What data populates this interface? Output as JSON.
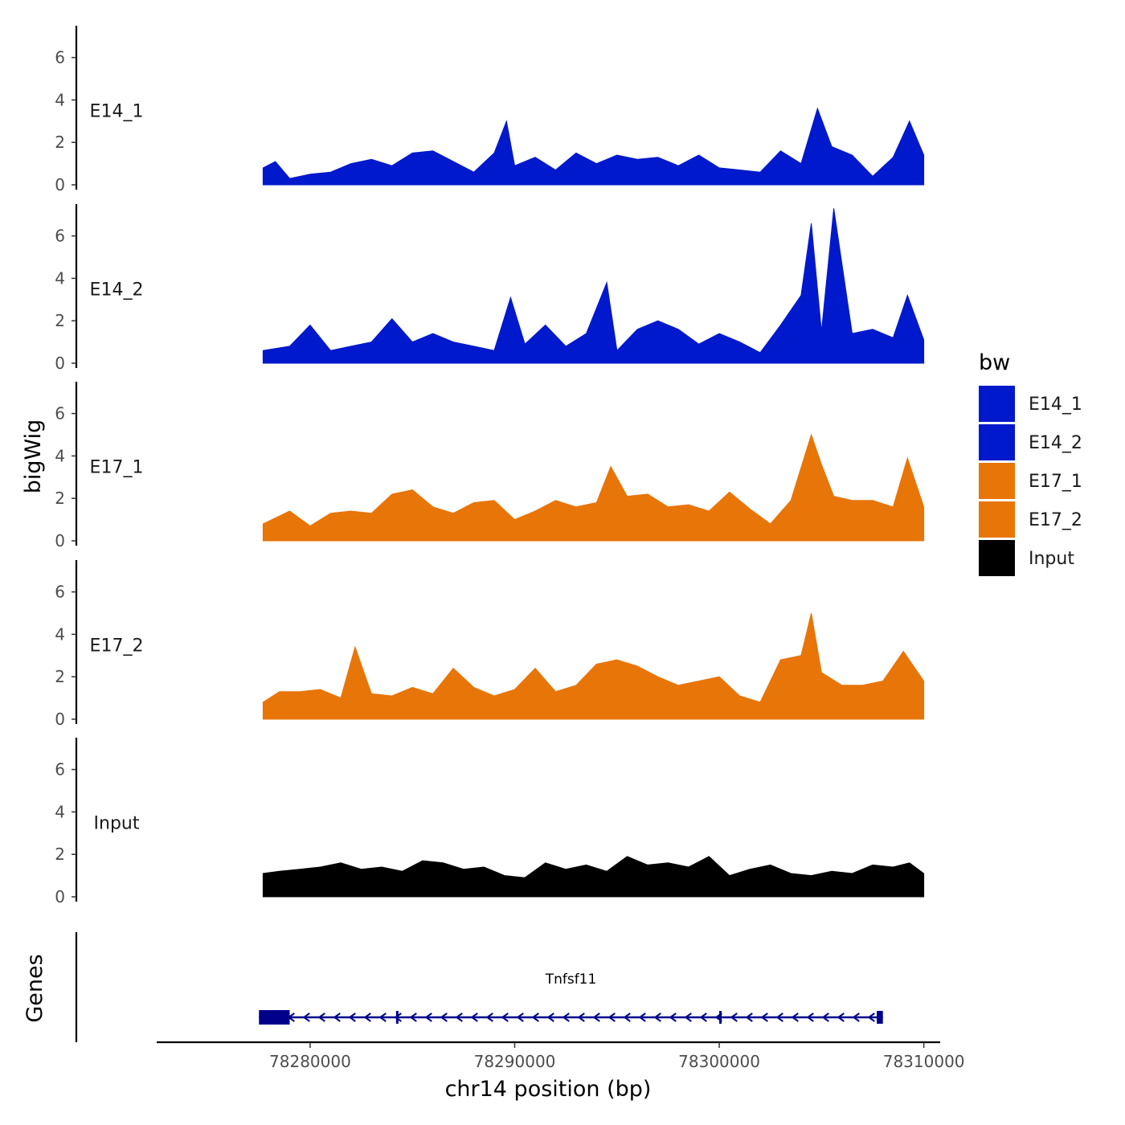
{
  "chart_data": {
    "type": "area",
    "title": "",
    "ylabel": "bigWig",
    "xlabel": "chr14 position (bp)",
    "genes_label": "Genes",
    "xlim": [
      78272500,
      78310800
    ],
    "ylim": [
      0,
      7.5
    ],
    "yticks": [
      0,
      2,
      4,
      6
    ],
    "xticks": [
      78280000,
      78290000,
      78300000,
      78310000
    ],
    "legend": {
      "title": "bw",
      "position": "right",
      "entries": [
        {
          "label": "E14_1",
          "color": "#0019CC"
        },
        {
          "label": "E14_2",
          "color": "#0019CC"
        },
        {
          "label": "E17_1",
          "color": "#E87508"
        },
        {
          "label": "E17_2",
          "color": "#E87508"
        },
        {
          "label": "Input",
          "color": "#000000"
        }
      ]
    },
    "tracks": [
      {
        "name": "E14_1",
        "color": "#0019CC",
        "x": [
          78277700,
          78278300,
          78279000,
          78280000,
          78281000,
          78282000,
          78283000,
          78284000,
          78285000,
          78286000,
          78287000,
          78288000,
          78289000,
          78289600,
          78290000,
          78291000,
          78292000,
          78293000,
          78294000,
          78295000,
          78296000,
          78297000,
          78298000,
          78299000,
          78300000,
          78301000,
          78302000,
          78303000,
          78304000,
          78304800,
          78305500,
          78306500,
          78307500,
          78308500,
          78309300,
          78310000
        ],
        "values": [
          0.8,
          1.1,
          0.3,
          0.5,
          0.6,
          1.0,
          1.2,
          0.9,
          1.5,
          1.6,
          1.1,
          0.6,
          1.5,
          3.0,
          0.9,
          1.3,
          0.7,
          1.5,
          1.0,
          1.4,
          1.2,
          1.3,
          0.9,
          1.4,
          0.8,
          0.7,
          0.6,
          1.6,
          1.0,
          3.6,
          1.8,
          1.4,
          0.4,
          1.3,
          3.0,
          1.4
        ]
      },
      {
        "name": "E14_2",
        "color": "#0019CC",
        "x": [
          78277700,
          78279000,
          78280000,
          78281000,
          78282000,
          78283000,
          78284000,
          78285000,
          78286000,
          78287000,
          78288000,
          78289000,
          78289800,
          78290500,
          78291500,
          78292500,
          78293500,
          78294500,
          78295000,
          78296000,
          78297000,
          78298000,
          78299000,
          78300000,
          78301000,
          78302000,
          78303000,
          78304000,
          78304500,
          78305000,
          78305600,
          78306500,
          78307500,
          78308500,
          78309200,
          78310000
        ],
        "values": [
          0.6,
          0.8,
          1.8,
          0.6,
          0.8,
          1.0,
          2.1,
          1.0,
          1.4,
          1.0,
          0.8,
          0.6,
          3.1,
          0.9,
          1.8,
          0.8,
          1.4,
          3.8,
          0.6,
          1.6,
          2.0,
          1.6,
          0.9,
          1.4,
          1.0,
          0.5,
          1.8,
          3.2,
          6.6,
          1.5,
          7.3,
          1.4,
          1.6,
          1.2,
          3.2,
          1.1
        ]
      },
      {
        "name": "E17_1",
        "color": "#E87508",
        "x": [
          78277700,
          78279000,
          78280000,
          78281000,
          78282000,
          78283000,
          78284000,
          78285000,
          78286000,
          78287000,
          78288000,
          78289000,
          78290000,
          78291000,
          78292000,
          78293000,
          78294000,
          78294700,
          78295500,
          78296500,
          78297500,
          78298500,
          78299500,
          78300500,
          78301500,
          78302500,
          78303500,
          78304500,
          78305000,
          78305600,
          78306500,
          78307500,
          78308500,
          78309200,
          78310000
        ],
        "values": [
          0.8,
          1.4,
          0.7,
          1.3,
          1.4,
          1.3,
          2.2,
          2.4,
          1.6,
          1.3,
          1.8,
          1.9,
          1.0,
          1.4,
          1.9,
          1.6,
          1.8,
          3.5,
          2.1,
          2.2,
          1.6,
          1.7,
          1.4,
          2.3,
          1.5,
          0.8,
          1.9,
          5.0,
          3.6,
          2.1,
          1.9,
          1.9,
          1.6,
          3.9,
          1.6
        ]
      },
      {
        "name": "E17_2",
        "color": "#E87508",
        "x": [
          78277700,
          78278500,
          78279500,
          78280500,
          78281500,
          78282200,
          78283000,
          78284000,
          78285000,
          78286000,
          78287000,
          78288000,
          78289000,
          78290000,
          78291000,
          78292000,
          78293000,
          78294000,
          78295000,
          78296000,
          78297000,
          78298000,
          78299000,
          78300000,
          78301000,
          78302000,
          78303000,
          78304000,
          78304500,
          78305000,
          78306000,
          78307000,
          78308000,
          78309000,
          78310000
        ],
        "values": [
          0.8,
          1.3,
          1.3,
          1.4,
          1.0,
          3.4,
          1.2,
          1.1,
          1.5,
          1.2,
          2.4,
          1.5,
          1.1,
          1.4,
          2.4,
          1.3,
          1.6,
          2.6,
          2.8,
          2.5,
          2.0,
          1.6,
          1.8,
          2.0,
          1.1,
          0.8,
          2.8,
          3.0,
          5.0,
          2.2,
          1.6,
          1.6,
          1.8,
          3.2,
          1.8
        ]
      },
      {
        "name": "Input",
        "color": "#000000",
        "x": [
          78277700,
          78278500,
          78279500,
          78280500,
          78281500,
          78282500,
          78283500,
          78284500,
          78285500,
          78286500,
          78287500,
          78288500,
          78289500,
          78290500,
          78291500,
          78292500,
          78293500,
          78294500,
          78295500,
          78296500,
          78297500,
          78298500,
          78299500,
          78300500,
          78301500,
          78302500,
          78303500,
          78304500,
          78305500,
          78306500,
          78307500,
          78308500,
          78309300,
          78310000
        ],
        "values": [
          1.1,
          1.2,
          1.3,
          1.4,
          1.6,
          1.3,
          1.4,
          1.2,
          1.7,
          1.6,
          1.3,
          1.4,
          1.0,
          0.9,
          1.6,
          1.3,
          1.5,
          1.2,
          1.9,
          1.5,
          1.6,
          1.4,
          1.9,
          1.0,
          1.3,
          1.5,
          1.1,
          1.0,
          1.2,
          1.1,
          1.5,
          1.4,
          1.6,
          1.1
        ]
      }
    ],
    "genes": [
      {
        "name": "Tnfsf11",
        "strand": "-",
        "start": 78277500,
        "end": 78308000,
        "thick": [
          [
            78277500,
            78279000
          ]
        ],
        "exons": [
          [
            78278800,
            78279000
          ],
          [
            78284200,
            78284300
          ],
          [
            78300000,
            78300100
          ],
          [
            78307700,
            78308000
          ]
        ]
      }
    ]
  }
}
